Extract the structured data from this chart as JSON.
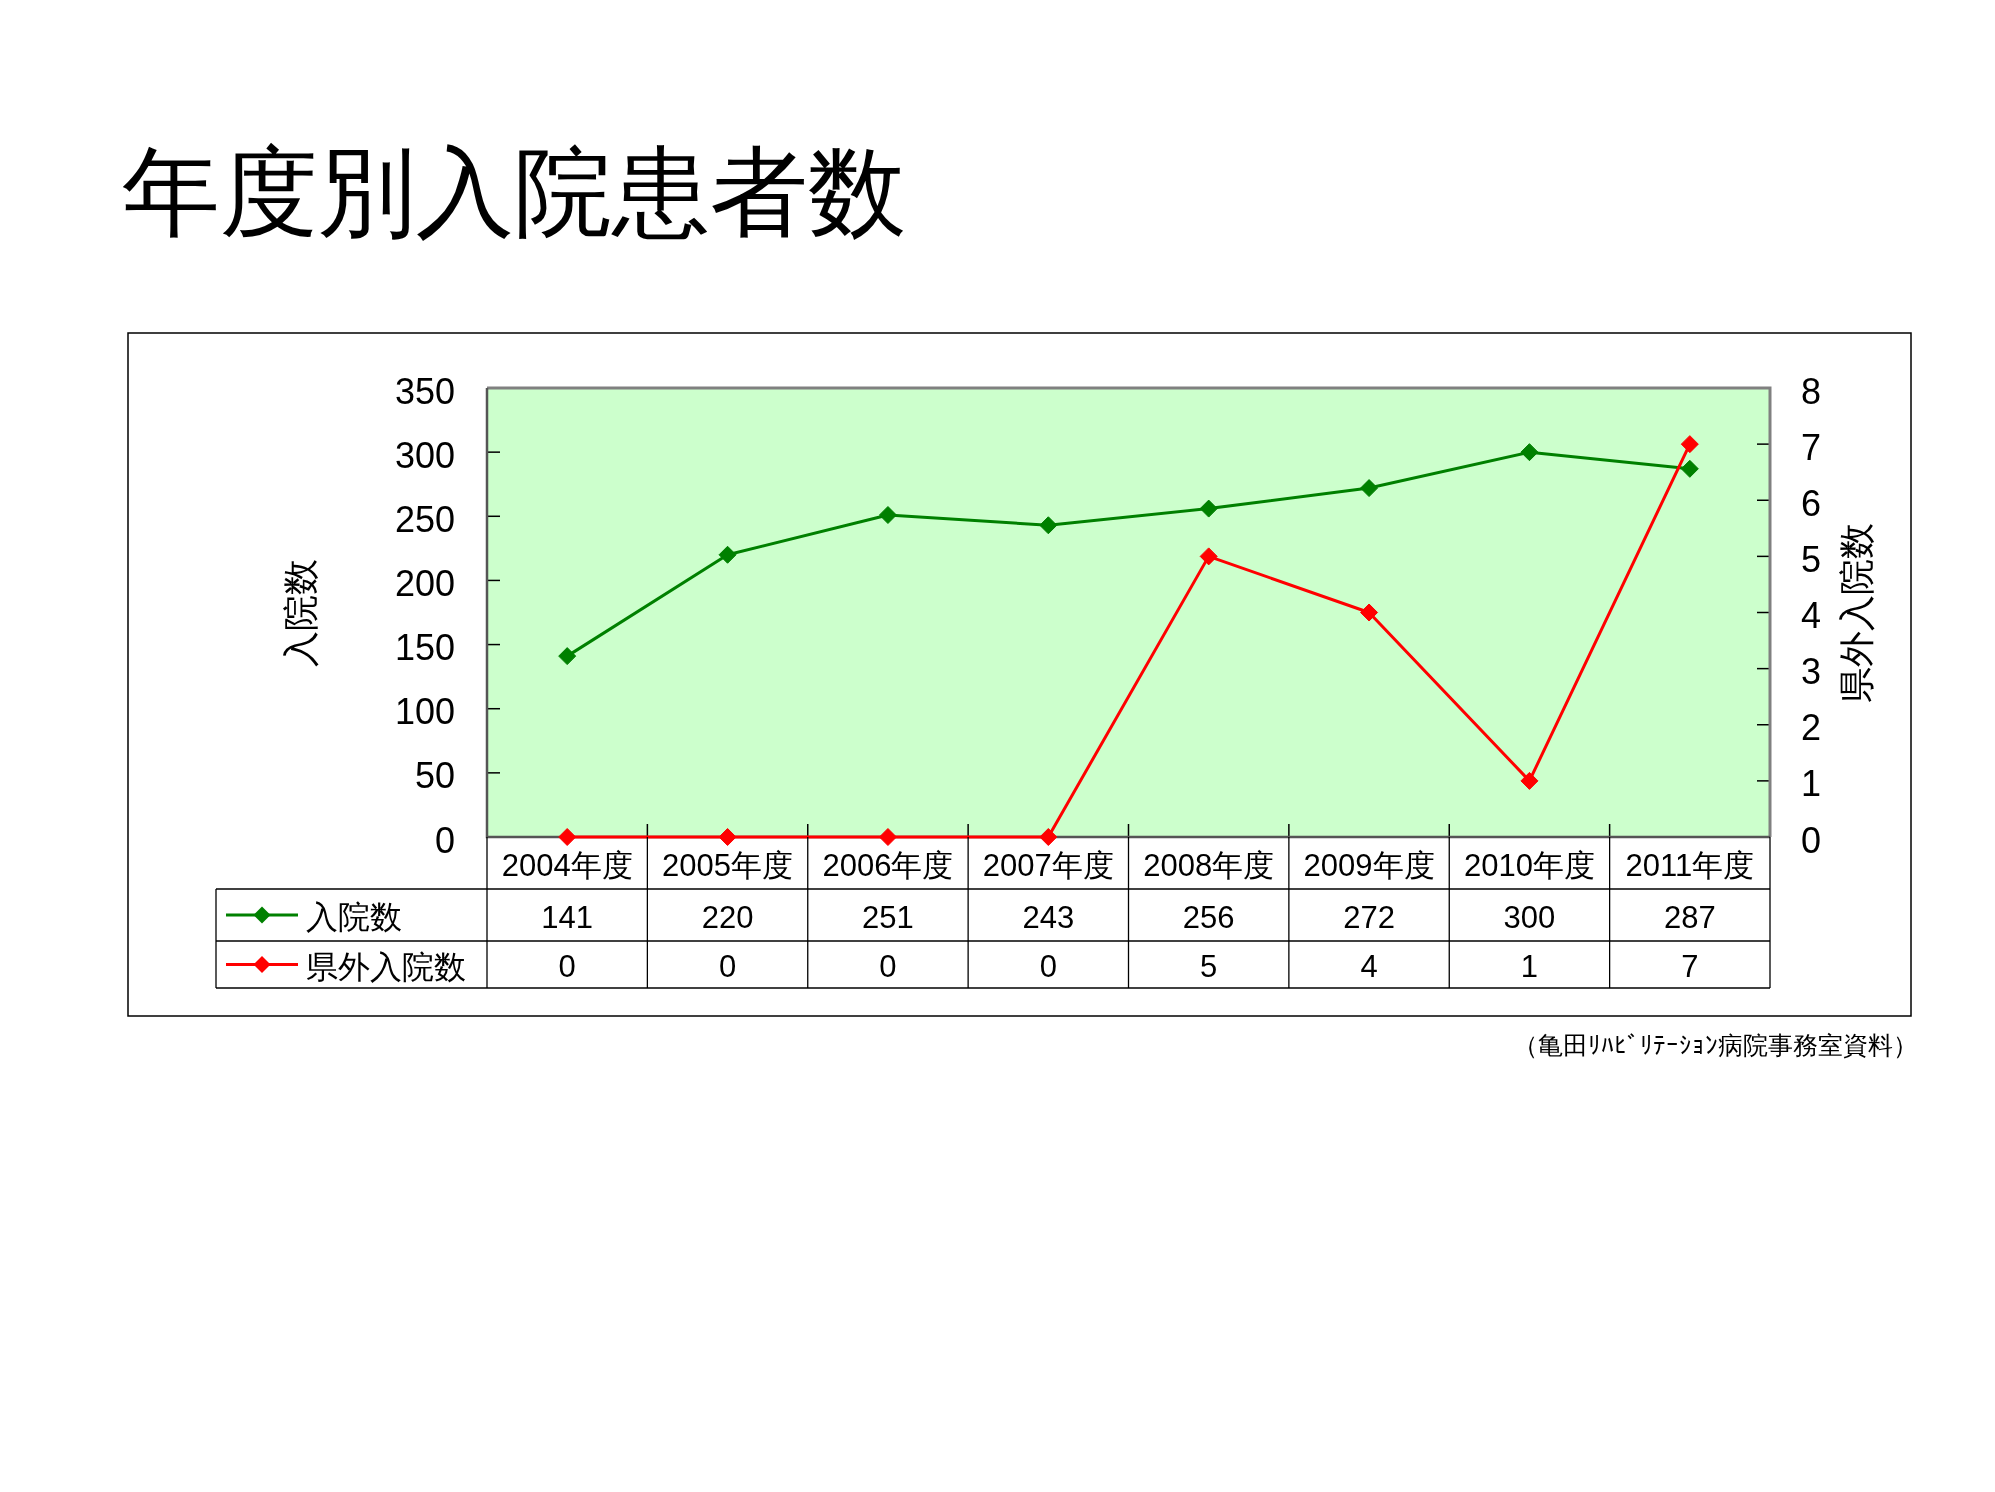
{
  "chart_data": {
    "type": "line",
    "title": "年度別入院患者数",
    "ylabel": "入院数",
    "y2label": "県外入院数",
    "categories": [
      "2004年度",
      "2005年度",
      "2006年度",
      "2007年度",
      "2008年度",
      "2009年度",
      "2010年度",
      "2011年度"
    ],
    "series": [
      {
        "name": "入院数",
        "color": "#008000",
        "values": [
          141,
          220,
          251,
          243,
          256,
          272,
          300,
          287
        ]
      },
      {
        "name": "県外入院数",
        "color": "#ff0000",
        "values": [
          0,
          0,
          0,
          0,
          5,
          4,
          1,
          7
        ],
        "axis": "y2"
      }
    ],
    "ylim": [
      0,
      350
    ],
    "yticks": [
      0,
      50,
      100,
      150,
      200,
      250,
      300,
      350
    ],
    "y2lim": [
      0,
      8
    ],
    "y2ticks": [
      0,
      1,
      2,
      3,
      4,
      5,
      6,
      7,
      8
    ],
    "marker": "diamond",
    "line_style": "solid",
    "legend": "bottom",
    "data_labels": true,
    "annotations": [
      "（亀田ﾘﾊﾋﾞﾘﾃｰｼｮﾝ病院事務室資料）"
    ]
  }
}
